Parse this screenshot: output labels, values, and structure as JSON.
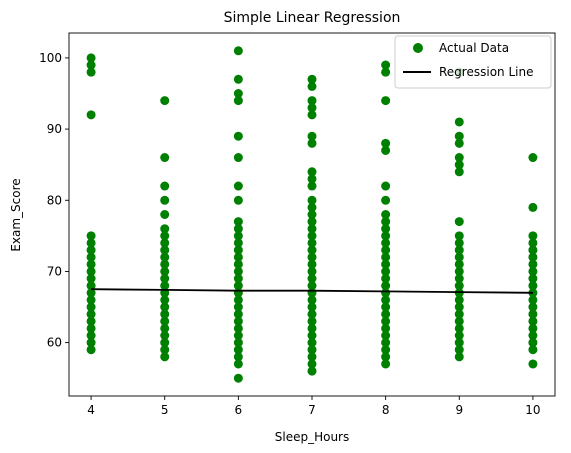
{
  "chart_data": {
    "type": "scatter",
    "title": "Simple Linear Regression",
    "xlabel": "Sleep_Hours",
    "ylabel": "Exam_Score",
    "xlim": [
      3.7,
      10.3
    ],
    "ylim": [
      52.5,
      103.5
    ],
    "x_ticks": [
      4,
      5,
      6,
      7,
      8,
      9,
      10
    ],
    "y_ticks": [
      60,
      70,
      80,
      90,
      100
    ],
    "grid": false,
    "legend_position": "upper right",
    "series": [
      {
        "name": "Actual Data",
        "kind": "scatter",
        "color": "#008000",
        "points": [
          [
            4,
            59
          ],
          [
            4,
            60
          ],
          [
            4,
            61
          ],
          [
            4,
            62
          ],
          [
            4,
            63
          ],
          [
            4,
            64
          ],
          [
            4,
            65
          ],
          [
            4,
            66
          ],
          [
            4,
            67
          ],
          [
            4,
            68
          ],
          [
            4,
            69
          ],
          [
            4,
            70
          ],
          [
            4,
            71
          ],
          [
            4,
            72
          ],
          [
            4,
            73
          ],
          [
            4,
            74
          ],
          [
            4,
            75
          ],
          [
            4,
            92
          ],
          [
            4,
            98
          ],
          [
            4,
            99
          ],
          [
            4,
            100
          ],
          [
            5,
            58
          ],
          [
            5,
            59
          ],
          [
            5,
            60
          ],
          [
            5,
            61
          ],
          [
            5,
            62
          ],
          [
            5,
            63
          ],
          [
            5,
            64
          ],
          [
            5,
            65
          ],
          [
            5,
            66
          ],
          [
            5,
            67
          ],
          [
            5,
            68
          ],
          [
            5,
            69
          ],
          [
            5,
            70
          ],
          [
            5,
            71
          ],
          [
            5,
            72
          ],
          [
            5,
            73
          ],
          [
            5,
            74
          ],
          [
            5,
            75
          ],
          [
            5,
            76
          ],
          [
            5,
            78
          ],
          [
            5,
            80
          ],
          [
            5,
            82
          ],
          [
            5,
            86
          ],
          [
            5,
            94
          ],
          [
            6,
            55
          ],
          [
            6,
            57
          ],
          [
            6,
            58
          ],
          [
            6,
            59
          ],
          [
            6,
            60
          ],
          [
            6,
            61
          ],
          [
            6,
            62
          ],
          [
            6,
            63
          ],
          [
            6,
            64
          ],
          [
            6,
            65
          ],
          [
            6,
            66
          ],
          [
            6,
            67
          ],
          [
            6,
            68
          ],
          [
            6,
            69
          ],
          [
            6,
            70
          ],
          [
            6,
            71
          ],
          [
            6,
            72
          ],
          [
            6,
            73
          ],
          [
            6,
            74
          ],
          [
            6,
            75
          ],
          [
            6,
            76
          ],
          [
            6,
            77
          ],
          [
            6,
            80
          ],
          [
            6,
            82
          ],
          [
            6,
            86
          ],
          [
            6,
            89
          ],
          [
            6,
            94
          ],
          [
            6,
            95
          ],
          [
            6,
            97
          ],
          [
            6,
            101
          ],
          [
            7,
            56
          ],
          [
            7,
            57
          ],
          [
            7,
            58
          ],
          [
            7,
            59
          ],
          [
            7,
            60
          ],
          [
            7,
            61
          ],
          [
            7,
            62
          ],
          [
            7,
            63
          ],
          [
            7,
            64
          ],
          [
            7,
            65
          ],
          [
            7,
            66
          ],
          [
            7,
            67
          ],
          [
            7,
            68
          ],
          [
            7,
            69
          ],
          [
            7,
            70
          ],
          [
            7,
            71
          ],
          [
            7,
            72
          ],
          [
            7,
            73
          ],
          [
            7,
            74
          ],
          [
            7,
            75
          ],
          [
            7,
            76
          ],
          [
            7,
            77
          ],
          [
            7,
            78
          ],
          [
            7,
            79
          ],
          [
            7,
            80
          ],
          [
            7,
            82
          ],
          [
            7,
            83
          ],
          [
            7,
            84
          ],
          [
            7,
            88
          ],
          [
            7,
            89
          ],
          [
            7,
            92
          ],
          [
            7,
            93
          ],
          [
            7,
            94
          ],
          [
            7,
            96
          ],
          [
            7,
            97
          ],
          [
            8,
            57
          ],
          [
            8,
            58
          ],
          [
            8,
            59
          ],
          [
            8,
            60
          ],
          [
            8,
            61
          ],
          [
            8,
            62
          ],
          [
            8,
            63
          ],
          [
            8,
            64
          ],
          [
            8,
            65
          ],
          [
            8,
            66
          ],
          [
            8,
            67
          ],
          [
            8,
            68
          ],
          [
            8,
            69
          ],
          [
            8,
            70
          ],
          [
            8,
            71
          ],
          [
            8,
            72
          ],
          [
            8,
            73
          ],
          [
            8,
            74
          ],
          [
            8,
            75
          ],
          [
            8,
            76
          ],
          [
            8,
            77
          ],
          [
            8,
            78
          ],
          [
            8,
            80
          ],
          [
            8,
            82
          ],
          [
            8,
            87
          ],
          [
            8,
            88
          ],
          [
            8,
            94
          ],
          [
            8,
            98
          ],
          [
            8,
            99
          ],
          [
            9,
            58
          ],
          [
            9,
            59
          ],
          [
            9,
            60
          ],
          [
            9,
            61
          ],
          [
            9,
            62
          ],
          [
            9,
            63
          ],
          [
            9,
            64
          ],
          [
            9,
            65
          ],
          [
            9,
            66
          ],
          [
            9,
            67
          ],
          [
            9,
            68
          ],
          [
            9,
            69
          ],
          [
            9,
            70
          ],
          [
            9,
            71
          ],
          [
            9,
            72
          ],
          [
            9,
            73
          ],
          [
            9,
            74
          ],
          [
            9,
            75
          ],
          [
            9,
            77
          ],
          [
            9,
            84
          ],
          [
            9,
            85
          ],
          [
            9,
            86
          ],
          [
            9,
            88
          ],
          [
            9,
            89
          ],
          [
            9,
            91
          ],
          [
            9,
            98
          ],
          [
            10,
            57
          ],
          [
            10,
            59
          ],
          [
            10,
            60
          ],
          [
            10,
            61
          ],
          [
            10,
            62
          ],
          [
            10,
            63
          ],
          [
            10,
            64
          ],
          [
            10,
            65
          ],
          [
            10,
            66
          ],
          [
            10,
            67
          ],
          [
            10,
            68
          ],
          [
            10,
            69
          ],
          [
            10,
            70
          ],
          [
            10,
            71
          ],
          [
            10,
            72
          ],
          [
            10,
            73
          ],
          [
            10,
            74
          ],
          [
            10,
            75
          ],
          [
            10,
            79
          ],
          [
            10,
            86
          ]
        ]
      },
      {
        "name": "Regression Line",
        "kind": "line",
        "color": "#000000",
        "points": [
          [
            4,
            67.5
          ],
          [
            5,
            67.4
          ],
          [
            6,
            67.3
          ],
          [
            7,
            67.3
          ],
          [
            8,
            67.2
          ],
          [
            9,
            67.1
          ],
          [
            10,
            67.0
          ]
        ]
      }
    ]
  }
}
